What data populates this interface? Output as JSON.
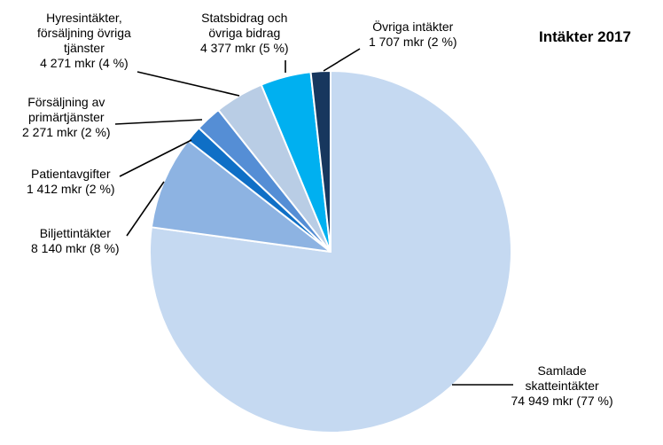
{
  "chart_data": {
    "type": "pie",
    "title": "Intäkter 2017",
    "slices": [
      {
        "name": "Samlade skatteintäkter",
        "label_lines": [
          "Samlade",
          "skatteintäkter"
        ],
        "value_label": "74 949 mkr (77 %)",
        "value": 74949,
        "percent": 77,
        "color": "#c5d9f1"
      },
      {
        "name": "Biljettintäkter",
        "label_lines": [
          "Biljettintäkter"
        ],
        "value_label": "8 140 mkr (8 %)",
        "value": 8140,
        "percent": 8,
        "color": "#8db3e2"
      },
      {
        "name": "Patientavgifter",
        "label_lines": [
          "Patientavgifter"
        ],
        "value_label": "1 412 mkr (2 %)",
        "value": 1412,
        "percent": 2,
        "color": "#0f6fc6"
      },
      {
        "name": "Försäljning av primärtjänster",
        "label_lines": [
          "Försäljning av",
          "primärtjänster"
        ],
        "value_label": "2 271 mkr (2 %)",
        "value": 2271,
        "percent": 2,
        "color": "#558ed5"
      },
      {
        "name": "Hyresintäkter, försäljning övriga tjänster",
        "label_lines": [
          "Hyresintäkter,",
          "försäljning övriga",
          "tjänster"
        ],
        "value_label": "4 271 mkr (4 %)",
        "value": 4271,
        "percent": 4,
        "color": "#b9cde5"
      },
      {
        "name": "Statsbidrag och övriga bidrag",
        "label_lines": [
          "Statsbidrag och",
          "övriga bidrag"
        ],
        "value_label": "4 377 mkr (5 %)",
        "value": 4377,
        "percent": 5,
        "color": "#00b0f0"
      },
      {
        "name": "Övriga intäkter",
        "label_lines": [
          "Övriga intäkter"
        ],
        "value_label": "1 707 mkr (2 %)",
        "value": 1707,
        "percent": 2,
        "color": "#17375e"
      }
    ]
  }
}
